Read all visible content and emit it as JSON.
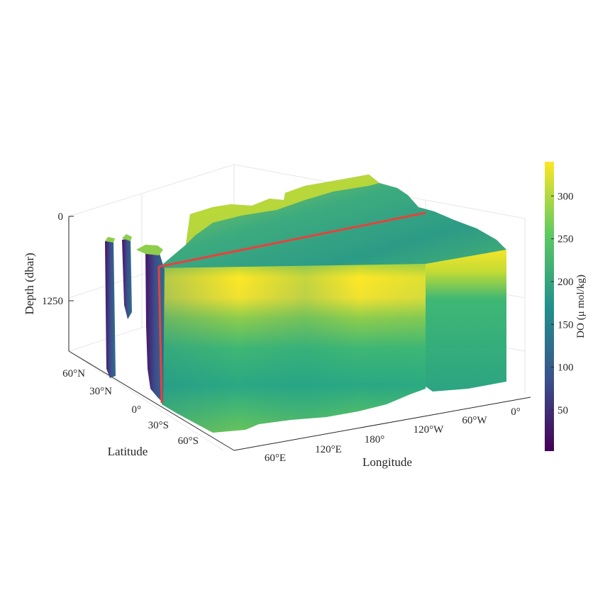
{
  "chart_data": {
    "type": "3d-volume-slice",
    "xlabel": "Longitude",
    "ylabel": "Latitude",
    "zlabel": "Depth (dbar)",
    "colorbar_label": "DO (μ mol/kg)",
    "colormap": [
      "#440154",
      "#3b528b",
      "#21918c",
      "#5ec962",
      "#fde725"
    ],
    "highlight_color": "#e8413c",
    "x_ticks": [
      "60°E",
      "120°E",
      "180°",
      "120°W",
      "60°W",
      "0°"
    ],
    "y_ticks": [
      "60°N",
      "30°N",
      "0°",
      "30°S",
      "60°S"
    ],
    "z_ticks": [
      "0",
      "1250"
    ],
    "z_range": [
      0,
      2000
    ],
    "colorbar_ticks": [
      50,
      100,
      150,
      200,
      250,
      300
    ],
    "colorbar_range": [
      2,
      340
    ],
    "grid": true
  }
}
